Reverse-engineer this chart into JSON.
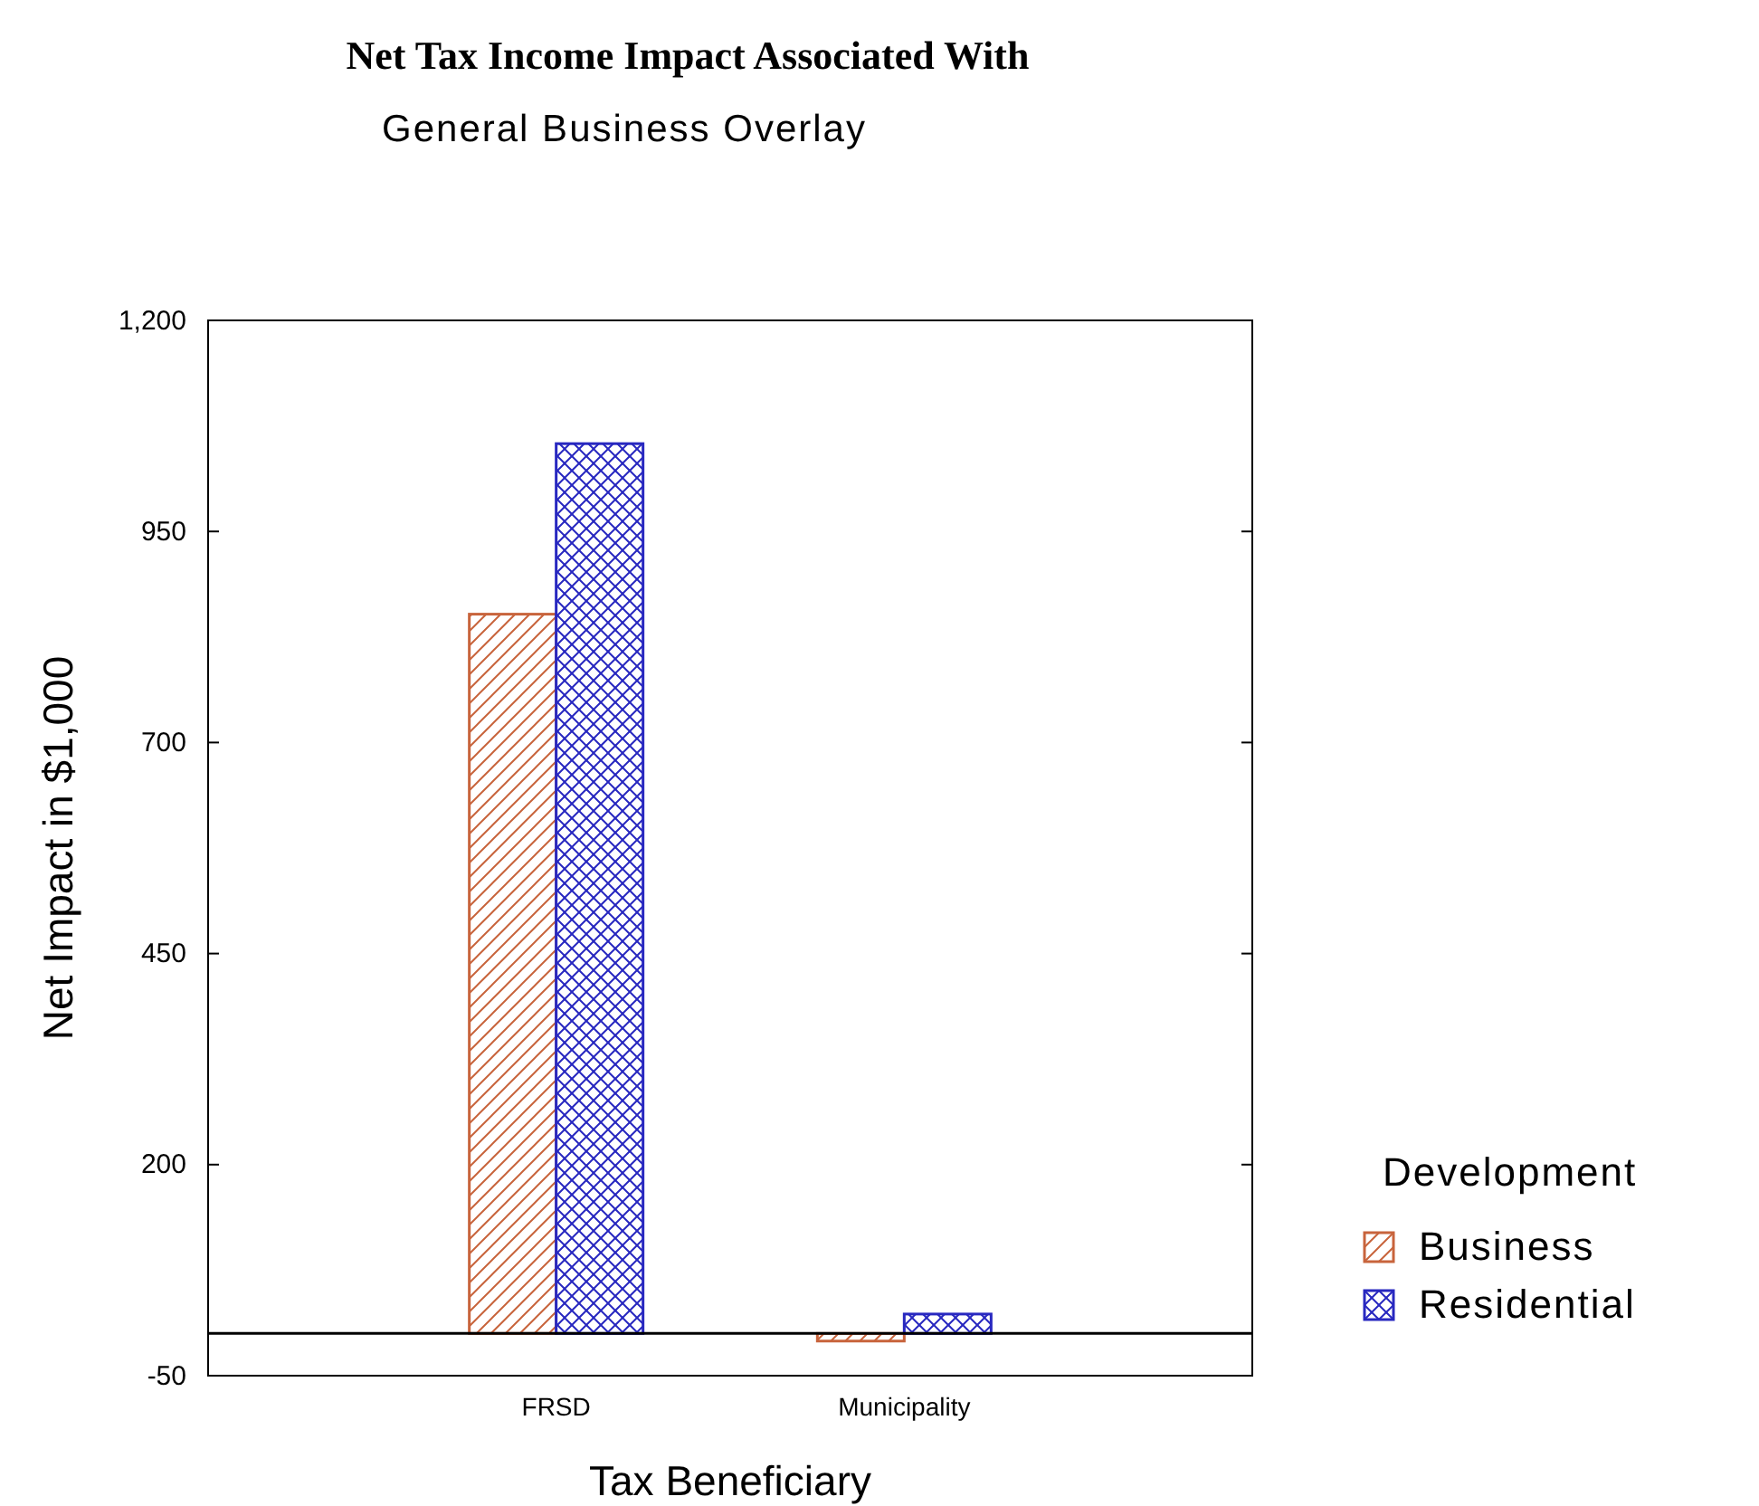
{
  "chart_data": {
    "type": "bar",
    "title": "Net Tax Income Impact Associated With",
    "subtitle": "General Business Overlay",
    "xlabel": "Tax Beneficiary",
    "ylabel": "Net Impact in $1,000",
    "legend_title": "Development",
    "categories": [
      "FRSD",
      "Municipality"
    ],
    "series": [
      {
        "name": "Business",
        "color": "#c8643c",
        "values": [
          852,
          -9
        ]
      },
      {
        "name": "Residential",
        "color": "#2828c0",
        "values": [
          1054,
          23
        ]
      }
    ],
    "ylim": [
      -50,
      1200
    ],
    "yticks": [
      -50,
      200,
      450,
      700,
      950,
      {
        "value": 1200,
        "label": "1,200"
      }
    ],
    "ref_lines": [
      {
        "axis": "y",
        "value": 0
      }
    ],
    "grid": false,
    "legend": "right"
  }
}
